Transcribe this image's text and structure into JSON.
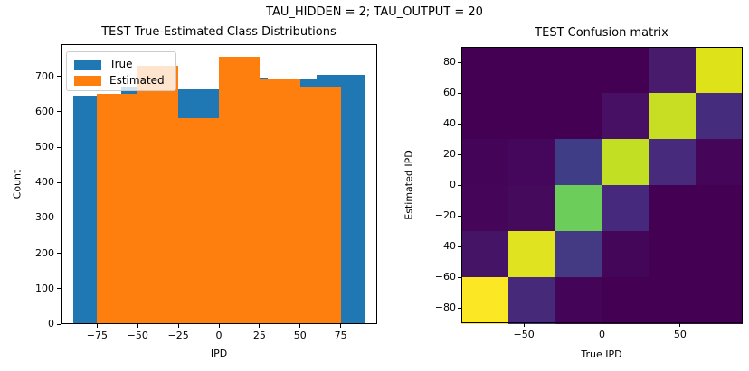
{
  "figure": {
    "suptitle": "TAU_HIDDEN = 2; TAU_OUTPUT = 20",
    "background": "#ffffff"
  },
  "chart_data": [
    {
      "type": "bar",
      "subtype": "overlaid-histograms",
      "title": "TEST True-Estimated Class Distributions",
      "xlabel": "IPD",
      "ylabel": "Count",
      "xlim": [
        -97.5,
        97.5
      ],
      "ylim": [
        0,
        791
      ],
      "xticks": [
        -75,
        -50,
        -25,
        0,
        25,
        50,
        75
      ],
      "yticks": [
        0,
        100,
        200,
        300,
        400,
        500,
        600,
        700
      ],
      "grid": false,
      "legend_position": "upper-left",
      "series": [
        {
          "name": "True",
          "color": "#1f77b4",
          "bin_edges": [
            -90,
            -60,
            -30,
            0,
            30,
            60,
            90
          ],
          "counts": [
            645,
            670,
            663,
            696,
            695,
            705
          ]
        },
        {
          "name": "Estimated",
          "color": "#ff7f0e",
          "bin_edges": [
            -75,
            -50,
            -25,
            0,
            25,
            50,
            75
          ],
          "counts": [
            650,
            729,
            583,
            755,
            692,
            670
          ]
        }
      ]
    },
    {
      "type": "heatmap",
      "title": "TEST Confusion matrix",
      "xlabel": "True IPD",
      "ylabel": "Estimated IPD",
      "colormap": "viridis",
      "extent": [
        -90,
        90,
        -90,
        90
      ],
      "xticks": [
        -50,
        0,
        50
      ],
      "yticks": [
        80,
        60,
        40,
        20,
        0,
        -20,
        -40,
        -60,
        -80
      ],
      "col_centers_true_ipd": [
        -75,
        -45,
        -15,
        15,
        45,
        75
      ],
      "row_centers_estimated_ipd_top_to_bottom": [
        75,
        45,
        15,
        -15,
        -45,
        -75
      ],
      "values_top_to_bottom": [
        [
          0,
          0,
          0,
          0,
          45,
          570
        ],
        [
          0,
          0,
          0,
          28,
          550,
          80
        ],
        [
          2,
          3,
          115,
          550,
          78,
          2
        ],
        [
          2,
          15,
          465,
          78,
          0,
          0
        ],
        [
          33,
          580,
          84,
          2,
          0,
          0
        ],
        [
          608,
          72,
          1,
          0,
          0,
          0
        ]
      ],
      "cell_colors_top_to_bottom": [
        [
          "#440154",
          "#440154",
          "#440154",
          "#440154",
          "#481b6d",
          "#dde318"
        ],
        [
          "#440154",
          "#440154",
          "#440154",
          "#471065",
          "#c8de22",
          "#452c7c"
        ],
        [
          "#440558",
          "#45075c",
          "#3f3d85",
          "#c2df23",
          "#472a7b",
          "#45065a"
        ],
        [
          "#45065a",
          "#460a5d",
          "#6ccd5b",
          "#46297c",
          "#440154",
          "#440154"
        ],
        [
          "#451466",
          "#e0e320",
          "#443a83",
          "#440658",
          "#440154",
          "#440154"
        ],
        [
          "#fbe723",
          "#472979",
          "#440457",
          "#440154",
          "#440154",
          "#440154"
        ]
      ]
    }
  ]
}
